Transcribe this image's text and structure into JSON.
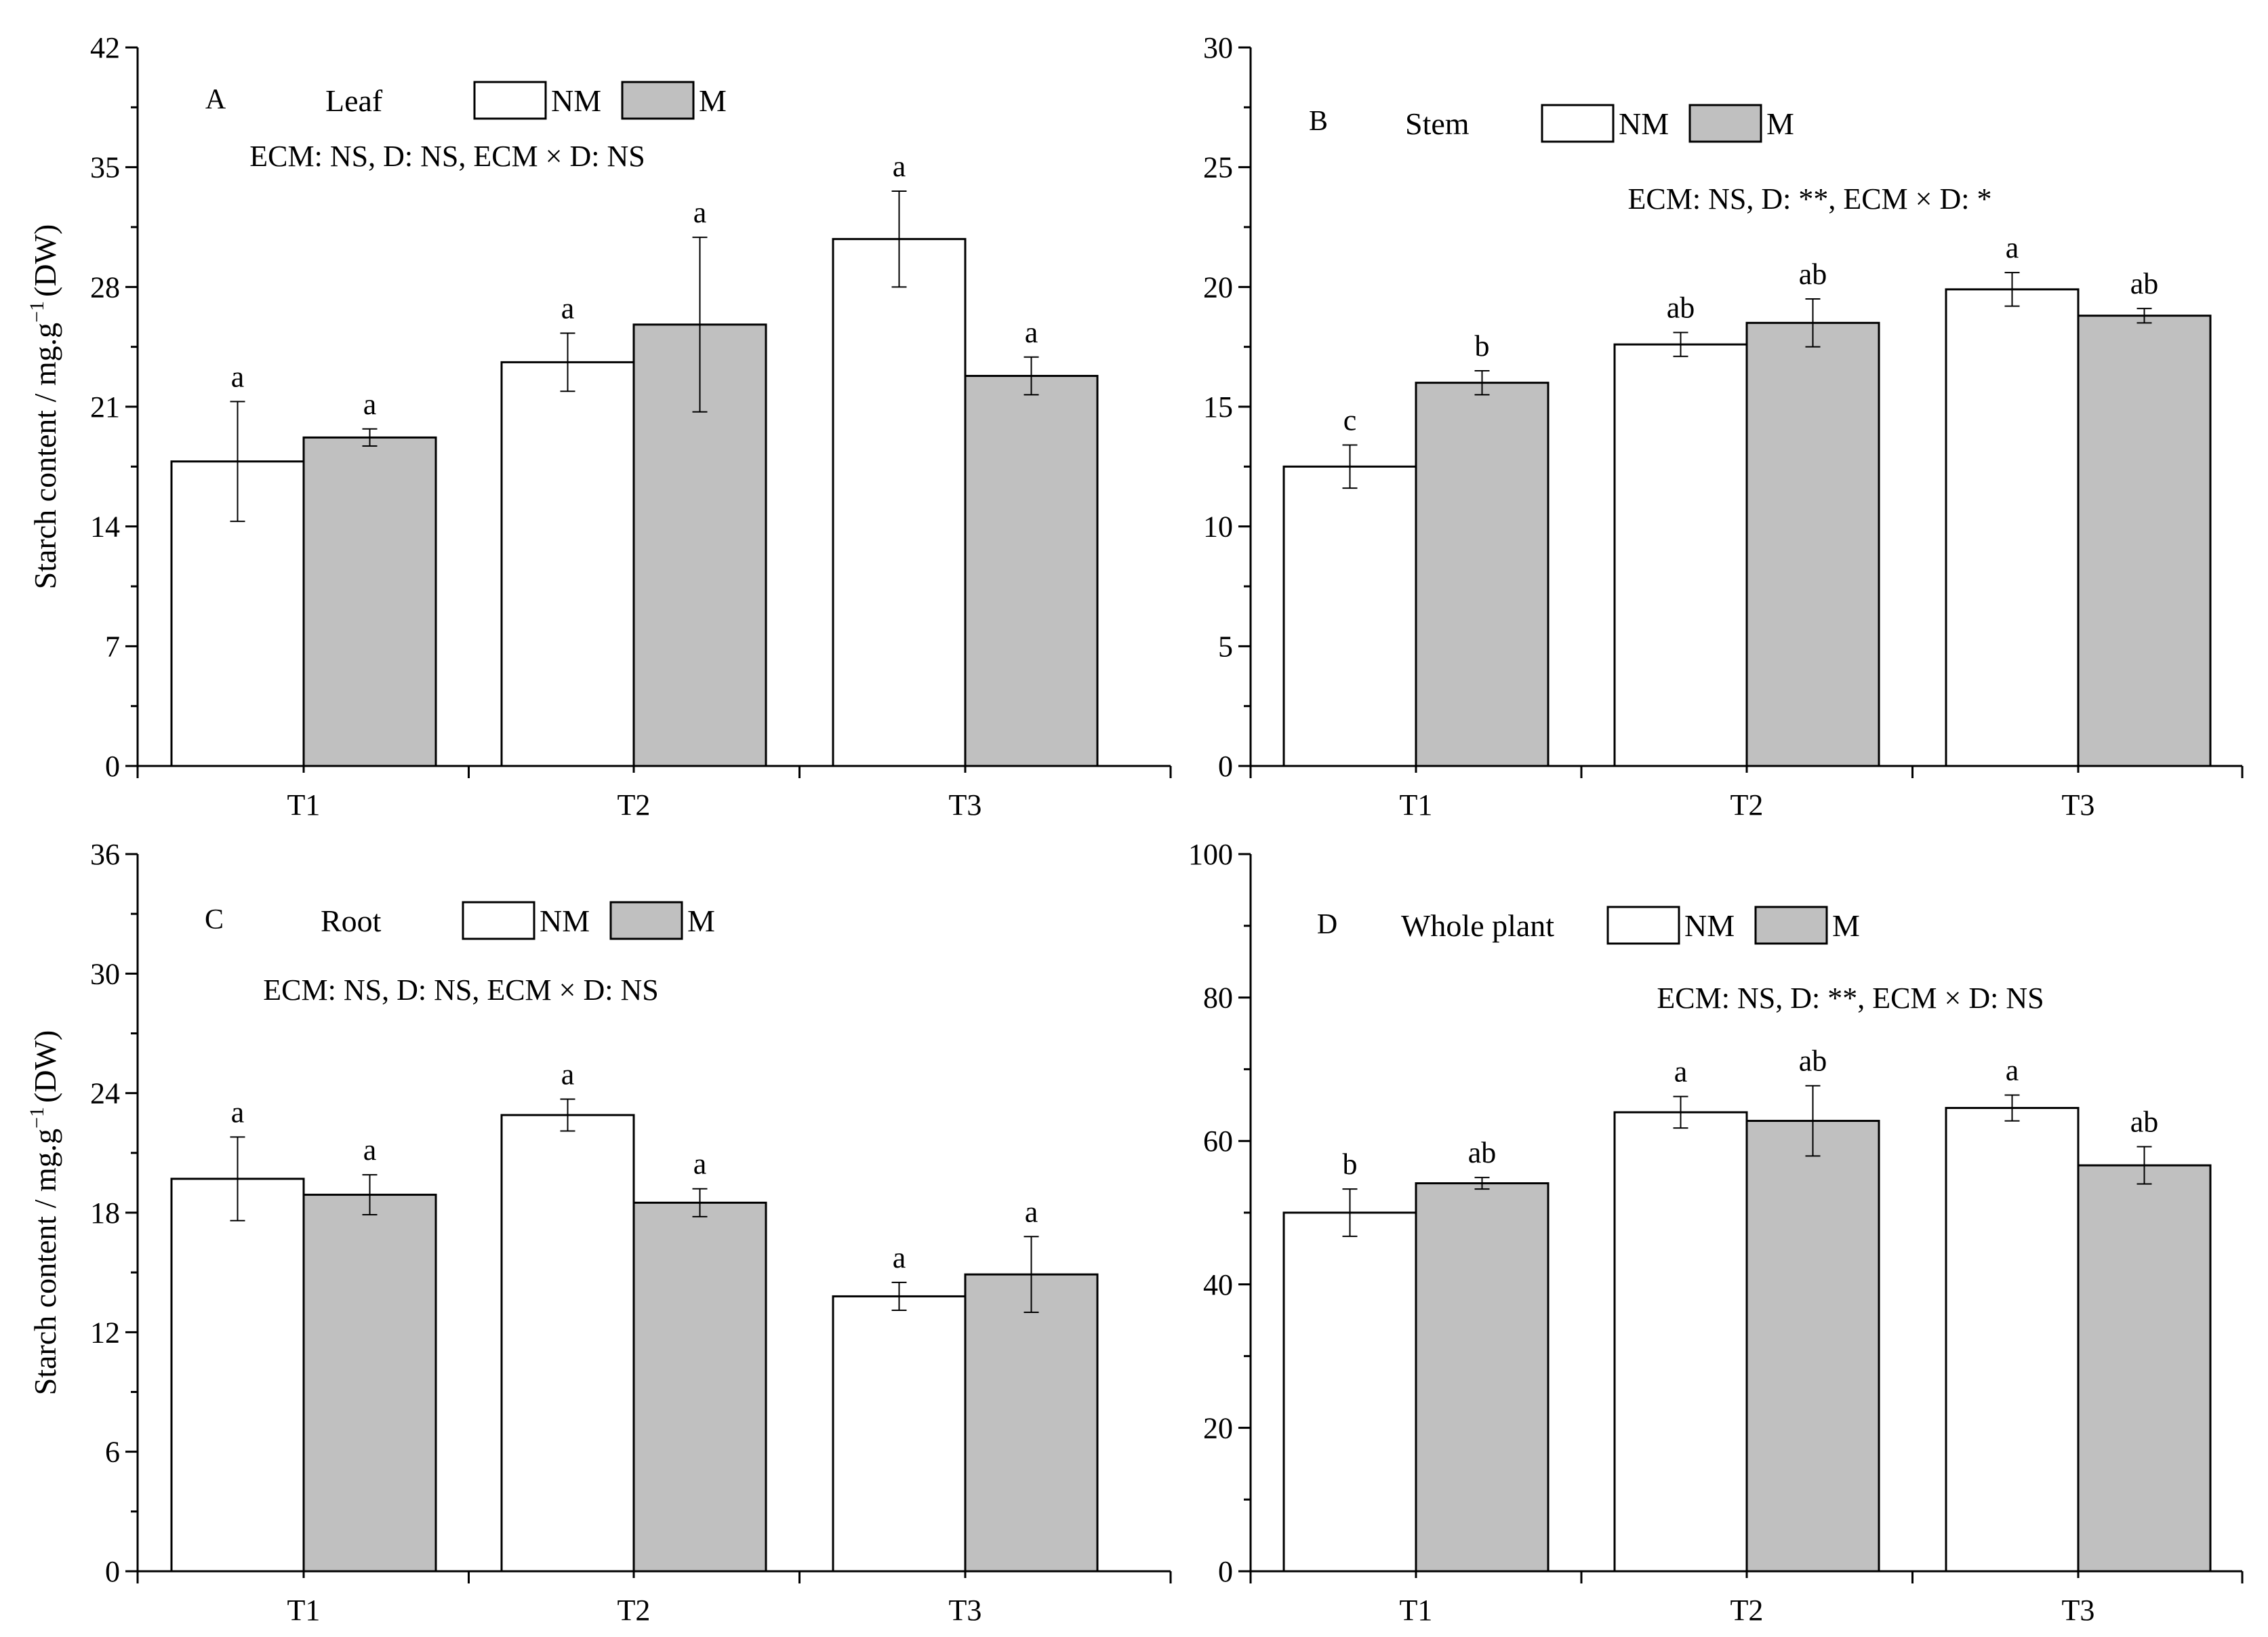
{
  "y_axis_title": "Starch content / mg.g",
  "y_axis_title_sup": "−1",
  "y_axis_title_unit": "(DW)",
  "colors": {
    "nm_fill": "#ffffff",
    "m_fill": "#c0c0c0",
    "stroke": "#000000"
  },
  "chart_data": [
    {
      "type": "bar",
      "panel_letter": "A",
      "title": "Leaf",
      "stats": "ECM: NS, D: NS, ECM × D: NS",
      "categories": [
        "T1",
        "T2",
        "T3"
      ],
      "yticks": [
        "0",
        "7",
        "14",
        "21",
        "28",
        "35",
        "42"
      ],
      "ylim": [
        0,
        42
      ],
      "legend": [
        "NM",
        "M"
      ],
      "series": [
        {
          "name": "NM",
          "values": [
            17.8,
            23.6,
            30.8
          ],
          "errors": [
            3.5,
            1.7,
            2.8
          ],
          "letters": [
            "a",
            "a",
            "a"
          ]
        },
        {
          "name": "M",
          "values": [
            19.2,
            25.8,
            22.8
          ],
          "errors": [
            0.5,
            5.1,
            1.1
          ],
          "letters": [
            "a",
            "a",
            "a"
          ]
        }
      ]
    },
    {
      "type": "bar",
      "panel_letter": "B",
      "title": "Stem",
      "stats": "ECM: NS, D: **, ECM × D: *",
      "categories": [
        "T1",
        "T2",
        "T3"
      ],
      "yticks": [
        "0",
        "5",
        "10",
        "15",
        "20",
        "25",
        "30"
      ],
      "ylim": [
        0,
        30
      ],
      "legend": [
        "NM",
        "M"
      ],
      "series": [
        {
          "name": "NM",
          "values": [
            12.5,
            17.6,
            19.9
          ],
          "errors": [
            0.9,
            0.5,
            0.7
          ],
          "letters": [
            "c",
            "ab",
            "a"
          ]
        },
        {
          "name": "M",
          "values": [
            16.0,
            18.5,
            18.8
          ],
          "errors": [
            0.5,
            1.0,
            0.3
          ],
          "letters": [
            "b",
            "ab",
            "ab"
          ]
        }
      ]
    },
    {
      "type": "bar",
      "panel_letter": "C",
      "title": "Root",
      "stats": "ECM: NS, D: NS, ECM × D: NS",
      "categories": [
        "T1",
        "T2",
        "T3"
      ],
      "yticks": [
        "0",
        "6",
        "12",
        "18",
        "24",
        "30",
        "36"
      ],
      "ylim": [
        0,
        36
      ],
      "legend": [
        "NM",
        "M"
      ],
      "series": [
        {
          "name": "NM",
          "values": [
            19.7,
            22.9,
            13.8
          ],
          "errors": [
            2.1,
            0.8,
            0.7
          ],
          "letters": [
            "a",
            "a",
            "a"
          ]
        },
        {
          "name": "M",
          "values": [
            18.9,
            18.5,
            14.9
          ],
          "errors": [
            1.0,
            0.7,
            1.9
          ],
          "letters": [
            "a",
            "a",
            "a"
          ]
        }
      ]
    },
    {
      "type": "bar",
      "panel_letter": "D",
      "title": "Whole plant",
      "stats": "ECM: NS, D: **, ECM × D: NS",
      "categories": [
        "T1",
        "T2",
        "T3"
      ],
      "yticks": [
        "0",
        "20",
        "40",
        "60",
        "80",
        "100"
      ],
      "ylim": [
        0,
        100
      ],
      "legend": [
        "NM",
        "M"
      ],
      "series": [
        {
          "name": "NM",
          "values": [
            50.0,
            64.0,
            64.6
          ],
          "errors": [
            3.3,
            2.2,
            1.8
          ],
          "letters": [
            "b",
            "a",
            "a"
          ]
        },
        {
          "name": "M",
          "values": [
            54.1,
            62.8,
            56.6
          ],
          "errors": [
            0.8,
            4.9,
            2.6
          ],
          "letters": [
            "ab",
            "ab",
            "ab"
          ]
        }
      ]
    }
  ]
}
